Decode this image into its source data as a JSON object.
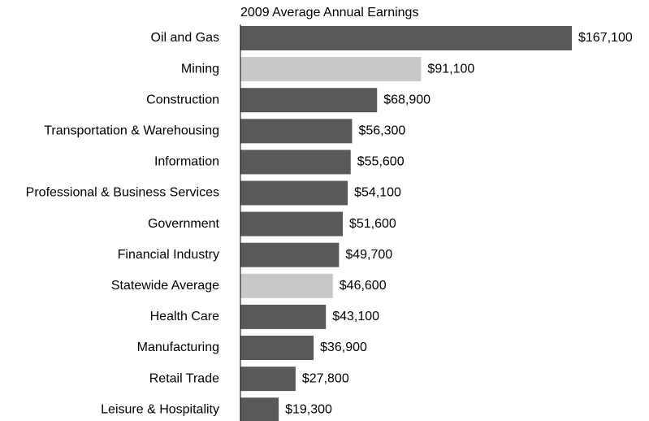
{
  "chart_data": {
    "type": "hbar",
    "title": "2009 Average Annual Earnings",
    "categories": [
      "Oil and Gas",
      "Mining",
      "Construction",
      "Transportation & Warehousing",
      "Information",
      "Professional & Business Services",
      "Government",
      "Financial Industry",
      "Statewide Average",
      "Health Care",
      "Manufacturing",
      "Retail Trade",
      "Leisure & Hospitality"
    ],
    "values": [
      167100,
      91100,
      68900,
      56300,
      55600,
      54100,
      51600,
      49700,
      46600,
      43100,
      36900,
      27800,
      19300
    ],
    "value_labels": [
      "$167,100",
      "$91,100",
      "$68,900",
      "$56,300",
      "$55,600",
      "$54,100",
      "$51,600",
      "$49,700",
      "$46,600",
      "$43,100",
      "$36,900",
      "$27,800",
      "$19,300"
    ],
    "colors": [
      "#595959",
      "#c8c8c8",
      "#595959",
      "#595959",
      "#595959",
      "#595959",
      "#595959",
      "#595959",
      "#c8c8c8",
      "#595959",
      "#595959",
      "#595959",
      "#595959"
    ]
  }
}
